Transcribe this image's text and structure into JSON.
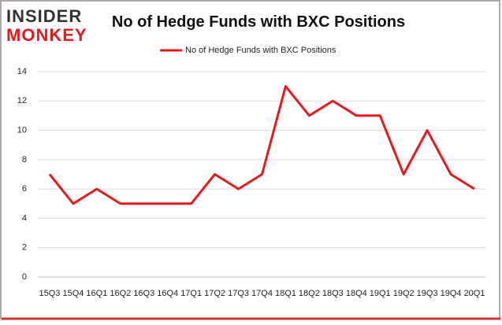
{
  "logo": {
    "line1": "INSIDER",
    "line2": "MONKEY"
  },
  "chart_data": {
    "type": "line",
    "title": "No of Hedge Funds with BXC Positions",
    "categories": [
      "15Q3",
      "15Q4",
      "16Q1",
      "16Q2",
      "16Q3",
      "16Q4",
      "17Q1",
      "17Q2",
      "17Q3",
      "17Q4",
      "18Q1",
      "18Q2",
      "18Q3",
      "18Q4",
      "19Q1",
      "19Q2",
      "19Q3",
      "19Q4",
      "20Q1"
    ],
    "series": [
      {
        "name": "No of Hedge Funds with BXC Positions",
        "color": "#e8191c",
        "values": [
          7,
          5,
          6,
          5,
          5,
          5,
          5,
          7,
          6,
          7,
          13,
          11,
          12,
          11,
          11,
          7,
          10,
          7,
          6
        ]
      }
    ],
    "ylim": [
      0,
      14
    ],
    "yticks": [
      0,
      2,
      4,
      6,
      8,
      10,
      12,
      14
    ],
    "grid": true,
    "legend": "top"
  }
}
